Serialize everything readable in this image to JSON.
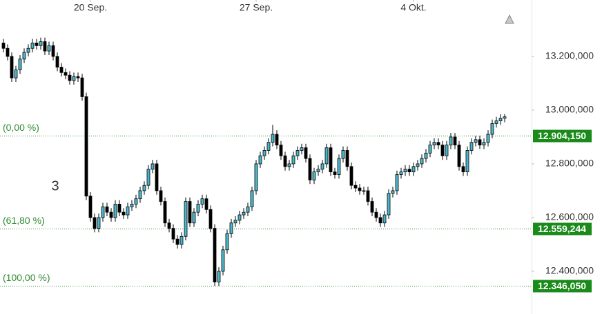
{
  "chart_data": {
    "type": "candlestick",
    "up_color": "#4ab8cc",
    "down_color": "#000000",
    "level_color": "#2e8b2e",
    "annotation": "3",
    "ylim": [
      12241,
      13410
    ],
    "yticks": [
      {
        "value": 12400,
        "label": "12.400,000"
      },
      {
        "value": 12600,
        "label": "12.600,000"
      },
      {
        "value": 12800,
        "label": "12.800,000"
      },
      {
        "value": 13000,
        "label": "13.000,000"
      },
      {
        "value": 13200,
        "label": "13.200,000"
      }
    ],
    "xticks": [
      {
        "value": 21,
        "label": "20 Sep."
      },
      {
        "value": 61,
        "label": "27 Sep."
      },
      {
        "value": 99,
        "label": "4 Okt."
      }
    ],
    "levels": [
      {
        "value": 12904.15,
        "label": "12.904,150",
        "pct": "(0,00 %)"
      },
      {
        "value": 12559.244,
        "label": "12.559,244",
        "pct": "(61,80 %)"
      },
      {
        "value": 12346.05,
        "label": "12.346,050",
        "pct": "(100,00 %)"
      }
    ],
    "open": [
      13250,
      13230,
      13200,
      13120,
      13150,
      13190,
      13215,
      13230,
      13250,
      13240,
      13255,
      13220,
      13240,
      13200,
      13160,
      13140,
      13130,
      13110,
      13125,
      13120,
      13050,
      12680,
      12600,
      12560,
      12600,
      12640,
      12620,
      12600,
      12650,
      12620,
      12610,
      12640,
      12650,
      12670,
      12700,
      12720,
      12780,
      12800,
      12700,
      12660,
      12580,
      12560,
      12520,
      12500,
      12530,
      12660,
      12580,
      12620,
      12650,
      12670,
      12630,
      12560,
      12360,
      12400,
      12480,
      12540,
      12580,
      12590,
      12610,
      12620,
      12640,
      12700,
      12800,
      12830,
      12850,
      12880,
      12910,
      12870,
      12830,
      12790,
      12800,
      12830,
      12850,
      12860,
      12820,
      12740,
      12770,
      12780,
      12800,
      12860,
      12770,
      12760,
      12820,
      12850,
      12790,
      12720,
      12710,
      12700,
      12700,
      12660,
      12620,
      12600,
      12580,
      12610,
      12690,
      12700,
      12760,
      12770,
      12780,
      12770,
      12790,
      12800,
      12820,
      12840,
      12870,
      12880,
      12870,
      12830,
      12870,
      12900,
      12870,
      12790,
      12770,
      12850,
      12880,
      12890,
      12870,
      12880,
      12910,
      12950,
      12960,
      12970
    ],
    "high": [
      13265,
      13245,
      13215,
      13165,
      13205,
      13230,
      13245,
      13265,
      13265,
      13270,
      13270,
      13255,
      13255,
      13215,
      13175,
      13155,
      13145,
      13140,
      13140,
      13135,
      13065,
      12695,
      12615,
      12615,
      12655,
      12655,
      12635,
      12665,
      12665,
      12635,
      12655,
      12665,
      12685,
      12715,
      12735,
      12795,
      12815,
      12815,
      12715,
      12675,
      12595,
      12575,
      12535,
      12545,
      12675,
      12675,
      12635,
      12665,
      12685,
      12685,
      12645,
      12575,
      12415,
      12495,
      12555,
      12595,
      12605,
      12625,
      12635,
      12655,
      12715,
      12815,
      12845,
      12865,
      12895,
      12945,
      12925,
      12885,
      12845,
      12815,
      12845,
      12865,
      12875,
      12875,
      12835,
      12785,
      12795,
      12815,
      12875,
      12875,
      12785,
      12835,
      12865,
      12865,
      12805,
      12735,
      12725,
      12715,
      12715,
      12675,
      12635,
      12615,
      12625,
      12705,
      12715,
      12775,
      12785,
      12795,
      12795,
      12805,
      12815,
      12835,
      12855,
      12885,
      12895,
      12895,
      12885,
      12885,
      12915,
      12915,
      12885,
      12805,
      12865,
      12895,
      12905,
      12905,
      12895,
      12925,
      12965,
      12975,
      12985,
      12985
    ],
    "low": [
      13215,
      13185,
      13105,
      13105,
      13135,
      13175,
      13200,
      13215,
      13225,
      13225,
      13205,
      13205,
      13185,
      13145,
      13125,
      13115,
      13095,
      13095,
      13105,
      13035,
      12665,
      12585,
      12545,
      12545,
      12585,
      12605,
      12585,
      12585,
      12605,
      12595,
      12595,
      12625,
      12635,
      12655,
      12685,
      12705,
      12765,
      12685,
      12645,
      12565,
      12545,
      12505,
      12485,
      12485,
      12515,
      12565,
      12565,
      12605,
      12635,
      12615,
      12545,
      12346,
      12345,
      12385,
      12465,
      12525,
      12565,
      12575,
      12595,
      12605,
      12625,
      12685,
      12785,
      12815,
      12835,
      12865,
      12855,
      12815,
      12775,
      12775,
      12785,
      12815,
      12835,
      12805,
      12725,
      12725,
      12755,
      12765,
      12785,
      12755,
      12745,
      12745,
      12805,
      12775,
      12705,
      12695,
      12685,
      12685,
      12645,
      12605,
      12585,
      12565,
      12565,
      12595,
      12675,
      12685,
      12745,
      12755,
      12755,
      12755,
      12775,
      12785,
      12805,
      12825,
      12855,
      12855,
      12815,
      12815,
      12855,
      12855,
      12775,
      12755,
      12755,
      12835,
      12865,
      12855,
      12855,
      12865,
      12895,
      12935,
      12945,
      12955
    ],
    "close": [
      13230,
      13200,
      13120,
      13150,
      13190,
      13215,
      13230,
      13250,
      13240,
      13255,
      13220,
      13240,
      13200,
      13160,
      13140,
      13130,
      13110,
      13125,
      13120,
      13050,
      12680,
      12600,
      12560,
      12600,
      12640,
      12620,
      12600,
      12650,
      12620,
      12610,
      12640,
      12650,
      12670,
      12700,
      12720,
      12780,
      12800,
      12700,
      12660,
      12580,
      12560,
      12520,
      12500,
      12530,
      12660,
      12580,
      12620,
      12650,
      12670,
      12630,
      12560,
      12360,
      12400,
      12480,
      12540,
      12580,
      12590,
      12610,
      12620,
      12640,
      12700,
      12800,
      12830,
      12850,
      12880,
      12910,
      12870,
      12830,
      12790,
      12800,
      12830,
      12850,
      12860,
      12820,
      12740,
      12770,
      12780,
      12800,
      12860,
      12770,
      12760,
      12820,
      12850,
      12790,
      12720,
      12710,
      12700,
      12700,
      12660,
      12620,
      12600,
      12580,
      12610,
      12690,
      12700,
      12760,
      12770,
      12780,
      12770,
      12790,
      12800,
      12820,
      12840,
      12870,
      12880,
      12870,
      12830,
      12870,
      12900,
      12870,
      12790,
      12770,
      12850,
      12880,
      12890,
      12870,
      12880,
      12910,
      12950,
      12960,
      12970,
      12975
    ]
  }
}
